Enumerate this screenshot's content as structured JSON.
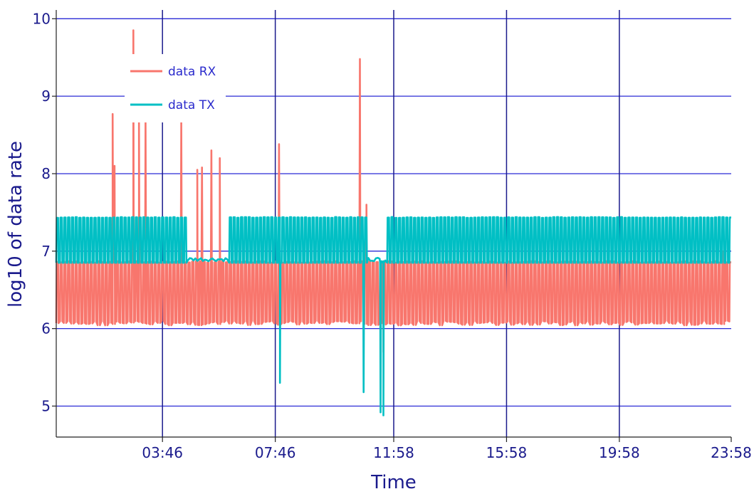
{
  "chart_data": {
    "type": "line",
    "title": "",
    "xlabel": "Time",
    "ylabel": "log10 of data rate",
    "ylim": [
      4.6,
      10.15
    ],
    "xlim": [
      0,
      1436
    ],
    "y_ticks": [
      5,
      6,
      7,
      8,
      9,
      10
    ],
    "x_ticks": [
      {
        "label": "03:46",
        "minute": 226
      },
      {
        "label": "07:46",
        "minute": 466
      },
      {
        "label": "11:58",
        "minute": 718
      },
      {
        "label": "15:58",
        "minute": 958
      },
      {
        "label": "19:58",
        "minute": 1198
      },
      {
        "label": "23:58",
        "minute": 1438
      }
    ],
    "grid": true,
    "legend_position": "top-left",
    "series": [
      {
        "name": "data RX",
        "color": "#f8766d",
        "baseline_low": 6.1,
        "baseline_high": 6.85,
        "cycle_minutes": 8,
        "spikes": [
          {
            "minute": 120,
            "value": 8.77
          },
          {
            "minute": 124,
            "value": 8.1
          },
          {
            "minute": 164,
            "value": 9.85
          },
          {
            "minute": 176,
            "value": 8.7
          },
          {
            "minute": 190,
            "value": 8.7
          },
          {
            "minute": 266,
            "value": 8.67
          },
          {
            "minute": 300,
            "value": 8.05
          },
          {
            "minute": 310,
            "value": 8.08
          },
          {
            "minute": 330,
            "value": 8.3
          },
          {
            "minute": 348,
            "value": 8.2
          },
          {
            "minute": 474,
            "value": 8.38
          },
          {
            "minute": 646,
            "value": 9.48
          },
          {
            "minute": 660,
            "value": 7.6
          },
          {
            "minute": 696,
            "value": 5.7
          },
          {
            "minute": 1420,
            "value": 7.0
          }
        ]
      },
      {
        "name": "data TX",
        "color": "#00bfc4",
        "baseline_low": 6.85,
        "baseline_high": 7.43,
        "cycle_minutes": 8,
        "flat_segments": [
          [
            275,
            365
          ],
          [
            658,
            700
          ]
        ],
        "dips": [
          {
            "minute": 476,
            "value": 5.3
          },
          {
            "minute": 654,
            "value": 5.18
          },
          {
            "minute": 690,
            "value": 4.92
          },
          {
            "minute": 696,
            "value": 4.88
          }
        ]
      }
    ]
  }
}
